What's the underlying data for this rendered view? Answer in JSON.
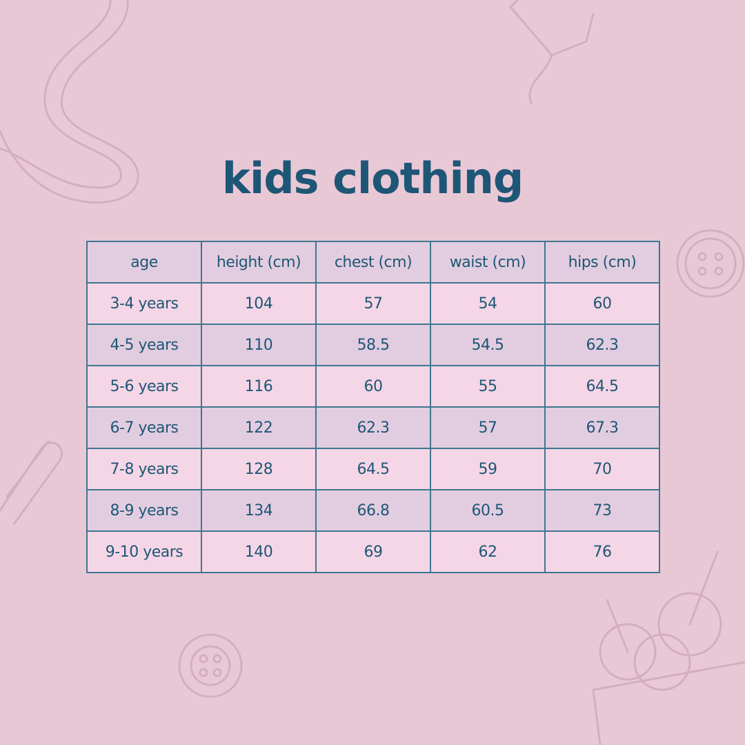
{
  "title": "kids clothing",
  "table": {
    "headers": [
      "age",
      "height (cm)",
      "chest (cm)",
      "waist (cm)",
      "hips (cm)"
    ],
    "rows": [
      [
        "3-4 years",
        "104",
        "57",
        "54",
        "60"
      ],
      [
        "4-5 years",
        "110",
        "58.5",
        "54.5",
        "62.3"
      ],
      [
        "5-6 years",
        "116",
        "60",
        "55",
        "64.5"
      ],
      [
        "6-7 years",
        "122",
        "62.3",
        "57",
        "67.3"
      ],
      [
        "7-8 years",
        "128",
        "64.5",
        "59",
        "70"
      ],
      [
        "8-9 years",
        "134",
        "66.8",
        "60.5",
        "73"
      ],
      [
        "9-10 years",
        "140",
        "69",
        "62",
        "76"
      ]
    ]
  },
  "colors": {
    "background": "#e9c8d6",
    "text": "#1e5676",
    "row_light": "#f5d6e6",
    "row_dark": "#e2cde0",
    "border": "#3e7690"
  },
  "decorations": [
    "measuring-tape-icon",
    "thread-spool-icon",
    "button-icon",
    "safety-pin-icon",
    "flower-button-icon",
    "yarn-basket-icon"
  ]
}
